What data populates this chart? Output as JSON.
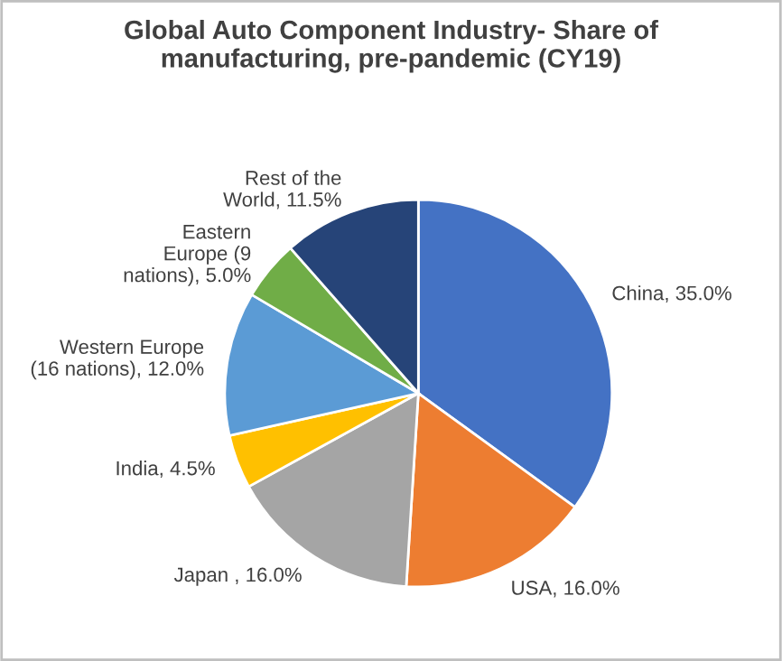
{
  "chart_data": {
    "type": "pie",
    "title": "Global Auto Component Industry- Share of\nmanufacturing, pre-pandemic (CY19)",
    "categories": [
      "China",
      "USA",
      "Japan ",
      "India",
      "Western Europe\n(16 nations)",
      "Eastern\nEurope (9\nnations)",
      "Rest of the\nWorld"
    ],
    "values": [
      35,
      16,
      16,
      4.5,
      12,
      5,
      11.5
    ],
    "value_labels": [
      "35.0%",
      "16.0%",
      "16.0%",
      "4.5%",
      "12.0%",
      "5.0%",
      "11.5%"
    ],
    "colors": [
      "#4472c4",
      "#ed7d31",
      "#a5a5a5",
      "#ffc000",
      "#5b9bd5",
      "#70ad47",
      "#264478"
    ],
    "legend": false
  }
}
